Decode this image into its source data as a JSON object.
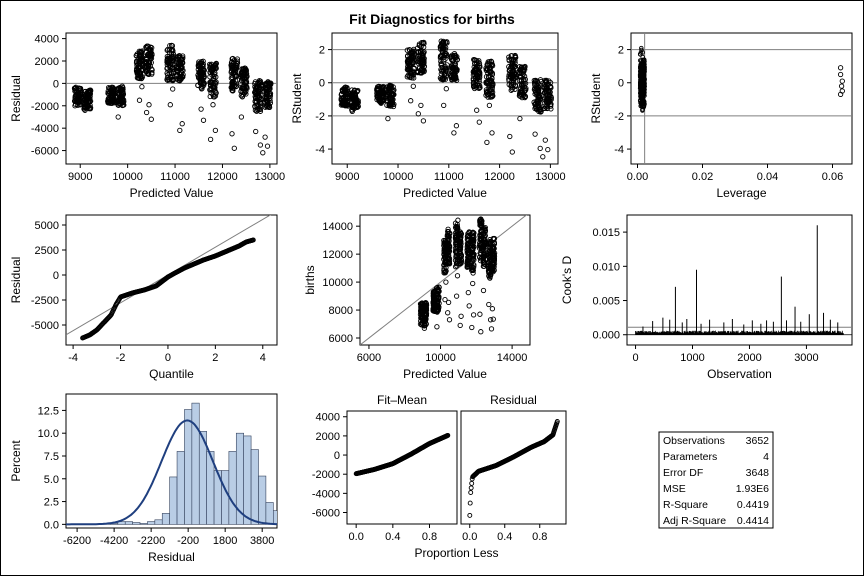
{
  "title": "Fit Diagnostics for births",
  "chart_data": [
    {
      "type": "scatter",
      "id": "resid_vs_pred",
      "xlabel": "Predicted Value",
      "ylabel": "Residual",
      "xlim": [
        8700,
        13150
      ],
      "ylim": [
        -7200,
        4500
      ],
      "x_ticks": [
        9000,
        10000,
        11000,
        12000,
        13000
      ],
      "y_ticks": [
        -6000,
        -4000,
        -2000,
        0,
        2000,
        4000
      ],
      "reference_lines_y": [
        0
      ],
      "clusters": [
        {
          "x": 8950,
          "y_min": -2000,
          "y_max": -300,
          "outliers": [
            [
              9100,
              -2400
            ]
          ]
        },
        {
          "x": 9150,
          "y_min": -2300,
          "y_max": -600
        },
        {
          "x": 9650,
          "y_min": -1800,
          "y_max": -300
        },
        {
          "x": 9850,
          "y_min": -2000,
          "y_max": -200,
          "outliers": [
            [
              9800,
              -3000
            ]
          ]
        },
        {
          "x": 10250,
          "y_min": 400,
          "y_max": 2900,
          "outliers": [
            [
              10300,
              -300
            ],
            [
              10250,
              -1500
            ]
          ]
        },
        {
          "x": 10450,
          "y_min": 800,
          "y_max": 3400,
          "outliers": [
            [
              10450,
              -1900
            ],
            [
              10500,
              -3200
            ],
            [
              10400,
              -2600
            ]
          ]
        },
        {
          "x": 10900,
          "y_min": 200,
          "y_max": 3500,
          "outliers": [
            [
              10950,
              -500
            ],
            [
              10900,
              -1900
            ]
          ]
        },
        {
          "x": 11100,
          "y_min": 200,
          "y_max": 2500,
          "outliers": [
            [
              11150,
              -3600
            ],
            [
              11100,
              -4200
            ]
          ]
        },
        {
          "x": 11550,
          "y_min": -500,
          "y_max": 2000,
          "outliers": [
            [
              11550,
              -2300
            ],
            [
              11600,
              -3300
            ]
          ]
        },
        {
          "x": 11800,
          "y_min": -1200,
          "y_max": 1800,
          "outliers": [
            [
              11800,
              -1900
            ],
            [
              11850,
              -4200
            ],
            [
              11750,
              -5000
            ]
          ]
        },
        {
          "x": 12250,
          "y_min": -700,
          "y_max": 2300,
          "outliers": [
            [
              12200,
              -4500
            ],
            [
              12250,
              -5800
            ]
          ]
        },
        {
          "x": 12450,
          "y_min": -1300,
          "y_max": 1400,
          "outliers": [
            [
              12400,
              -3000
            ]
          ]
        },
        {
          "x": 12750,
          "y_min": -2500,
          "y_max": 300,
          "outliers": [
            [
              12700,
              -4300
            ],
            [
              12800,
              -5500
            ],
            [
              12850,
              -6200
            ]
          ]
        },
        {
          "x": 12950,
          "y_min": -2200,
          "y_max": 200,
          "outliers": [
            [
              12900,
              -4800
            ],
            [
              12950,
              -5600
            ]
          ]
        }
      ]
    },
    {
      "type": "scatter",
      "id": "rstudent_vs_pred",
      "xlabel": "Predicted Value",
      "ylabel": "RStudent",
      "xlim": [
        8700,
        13150
      ],
      "ylim": [
        -4.9,
        3.0
      ],
      "x_ticks": [
        9000,
        10000,
        11000,
        12000,
        13000
      ],
      "y_ticks": [
        -4,
        -2,
        0,
        2
      ],
      "reference_lines_y": [
        -2,
        0,
        2
      ]
    },
    {
      "type": "scatter",
      "id": "rstudent_vs_leverage",
      "xlabel": "Leverage",
      "ylabel": "RStudent",
      "xlim": [
        -0.002,
        0.066
      ],
      "ylim": [
        -4.9,
        3.0
      ],
      "x_ticks": [
        0.0,
        0.02,
        0.04,
        0.06
      ],
      "x_tick_labels": [
        "0.00",
        "0.02",
        "0.04",
        "0.06"
      ],
      "y_ticks": [
        -4,
        -2,
        0,
        2
      ],
      "reference_lines_y": [
        -2,
        2
      ],
      "reference_lines_x": [
        0.0022
      ],
      "high_leverage_points": [
        [
          0.0625,
          0.9
        ],
        [
          0.0625,
          0.5
        ],
        [
          0.063,
          0.1
        ],
        [
          0.0628,
          -0.2
        ],
        [
          0.063,
          -0.5
        ],
        [
          0.0625,
          -0.7
        ]
      ]
    },
    {
      "type": "scatter",
      "id": "qq_plot",
      "xlabel": "Quantile",
      "ylabel": "Residual",
      "xlim": [
        -4.3,
        4.6
      ],
      "ylim": [
        -7000,
        6000
      ],
      "x_ticks": [
        -4,
        -2,
        0,
        2,
        4
      ],
      "y_ticks": [
        -5000,
        -2500,
        0,
        2500,
        5000
      ],
      "reference_line": {
        "slope": 1390,
        "intercept": 0
      },
      "curve_points": [
        [
          -3.6,
          -6300
        ],
        [
          -3.3,
          -6000
        ],
        [
          -3.0,
          -5500
        ],
        [
          -2.8,
          -5000
        ],
        [
          -2.6,
          -4500
        ],
        [
          -2.4,
          -4000
        ],
        [
          -2.2,
          -3000
        ],
        [
          -2.0,
          -2200
        ],
        [
          -1.5,
          -1800
        ],
        [
          -1.0,
          -1500
        ],
        [
          -0.5,
          -1100
        ],
        [
          0.0,
          -200
        ],
        [
          0.3,
          200
        ],
        [
          0.7,
          700
        ],
        [
          1.0,
          1000
        ],
        [
          1.5,
          1500
        ],
        [
          2.0,
          1900
        ],
        [
          2.5,
          2400
        ],
        [
          3.0,
          2900
        ],
        [
          3.3,
          3300
        ],
        [
          3.6,
          3500
        ]
      ]
    },
    {
      "type": "scatter",
      "id": "births_vs_pred",
      "xlabel": "Predicted Value",
      "ylabel": "births",
      "xlim": [
        5500,
        15000
      ],
      "ylim": [
        5500,
        14800
      ],
      "x_ticks": [
        6000,
        10000,
        14000
      ],
      "y_ticks": [
        6000,
        8000,
        10000,
        12000,
        14000
      ],
      "reference_line": {
        "slope": 1,
        "intercept": 0
      }
    },
    {
      "type": "bar",
      "id": "cooks_d",
      "xlabel": "Observation",
      "ylabel": "Cook's D",
      "xlim": [
        -150,
        3800
      ],
      "ylim": [
        -0.0015,
        0.0175
      ],
      "x_ticks": [
        0,
        1000,
        2000,
        3000
      ],
      "y_ticks": [
        0.0,
        0.005,
        0.01,
        0.015
      ],
      "y_tick_labels": [
        "0.000",
        "0.005",
        "0.010",
        "0.015"
      ],
      "threshold": 0.0011,
      "spikes": [
        [
          130,
          0.0012
        ],
        [
          300,
          0.002
        ],
        [
          480,
          0.0025
        ],
        [
          600,
          0.0022
        ],
        [
          700,
          0.007
        ],
        [
          820,
          0.0018
        ],
        [
          900,
          0.0023
        ],
        [
          1070,
          0.0095
        ],
        [
          1150,
          0.0016
        ],
        [
          1300,
          0.0022
        ],
        [
          1550,
          0.0018
        ],
        [
          1700,
          0.0023
        ],
        [
          1900,
          0.0015
        ],
        [
          2050,
          0.0021
        ],
        [
          2200,
          0.0016
        ],
        [
          2300,
          0.0021
        ],
        [
          2420,
          0.0019
        ],
        [
          2560,
          0.0085
        ],
        [
          2650,
          0.0021
        ],
        [
          2800,
          0.0041
        ],
        [
          2900,
          0.0019
        ],
        [
          3050,
          0.003
        ],
        [
          3190,
          0.016
        ],
        [
          3300,
          0.0032
        ],
        [
          3420,
          0.0022
        ],
        [
          3550,
          0.0018
        ]
      ]
    },
    {
      "type": "bar",
      "id": "residual_histogram",
      "xlabel": "Residual",
      "ylabel": "Percent",
      "xlim": [
        -6800,
        4600
      ],
      "ylim": [
        -0.4,
        14.3
      ],
      "x_ticks": [
        -6200,
        -4200,
        -2200,
        -200,
        1800,
        3800
      ],
      "y_ticks": [
        0.0,
        2.5,
        5.0,
        7.5,
        10.0,
        12.5
      ],
      "y_tick_labels": [
        "0.0",
        "2.5",
        "5.0",
        "7.5",
        "10.0",
        "12.5"
      ],
      "bin_width": 400,
      "bins_start": -6400,
      "values": [
        0.05,
        0.05,
        0.0,
        0.05,
        0.05,
        0.1,
        0.3,
        0.3,
        0.2,
        0.1,
        0.3,
        0.5,
        1.2,
        5.2,
        8.0,
        12.6,
        13.3,
        10.2,
        8.0,
        5.9,
        5.9,
        8.0,
        10.0,
        9.7,
        8.2,
        5.3,
        2.4,
        1.5,
        0.3,
        0.1
      ],
      "normal_curve": {
        "mean": -250,
        "sd": 1390,
        "peak": 11.4
      }
    },
    {
      "type": "scatter",
      "id": "rf_fit_mean",
      "panel_title": "Fit–Mean",
      "xlim": [
        -0.1,
        1.1
      ],
      "ylim": [
        -7200,
        4600
      ],
      "x_ticks": [
        0.0,
        0.4,
        0.8
      ],
      "x_tick_labels": [
        "0.0",
        "0.4",
        "0.8"
      ],
      "y_ticks": [
        -6000,
        -4000,
        -2000,
        0,
        2000,
        4000
      ],
      "curve_points": [
        [
          0.0,
          -1950
        ],
        [
          0.2,
          -1500
        ],
        [
          0.4,
          -900
        ],
        [
          0.6,
          100
        ],
        [
          0.8,
          1200
        ],
        [
          1.0,
          2050
        ]
      ]
    },
    {
      "type": "scatter",
      "id": "rf_residual",
      "panel_title": "Residual",
      "xlim": [
        -0.1,
        1.1
      ],
      "ylim": [
        -7200,
        4600
      ],
      "x_ticks": [
        0.0,
        0.4,
        0.8
      ],
      "x_tick_labels": [
        "0.0",
        "0.4",
        "0.8"
      ],
      "curve_points": [
        [
          0.0,
          -6300
        ],
        [
          0.01,
          -4000
        ],
        [
          0.03,
          -2300
        ],
        [
          0.1,
          -1700
        ],
        [
          0.3,
          -1100
        ],
        [
          0.5,
          -200
        ],
        [
          0.7,
          800
        ],
        [
          0.85,
          1400
        ],
        [
          0.95,
          2100
        ],
        [
          1.0,
          3500
        ]
      ],
      "shared_xlabel": "Proportion Less"
    }
  ],
  "fit_statistics": [
    {
      "label": "Observations",
      "value": "3652"
    },
    {
      "label": "Parameters",
      "value": "4"
    },
    {
      "label": "Error DF",
      "value": "3648"
    },
    {
      "label": "MSE",
      "value": "1.93E6"
    },
    {
      "label": "R-Square",
      "value": "0.4419"
    },
    {
      "label": "Adj R-Square",
      "value": "0.4414"
    }
  ],
  "colors": {
    "marker": "#000000",
    "reference_line": "#7f7f7f",
    "histogram_fill": "#b9cde5",
    "histogram_edge": "#33415c",
    "normal_curve": "#1f3f7f"
  }
}
